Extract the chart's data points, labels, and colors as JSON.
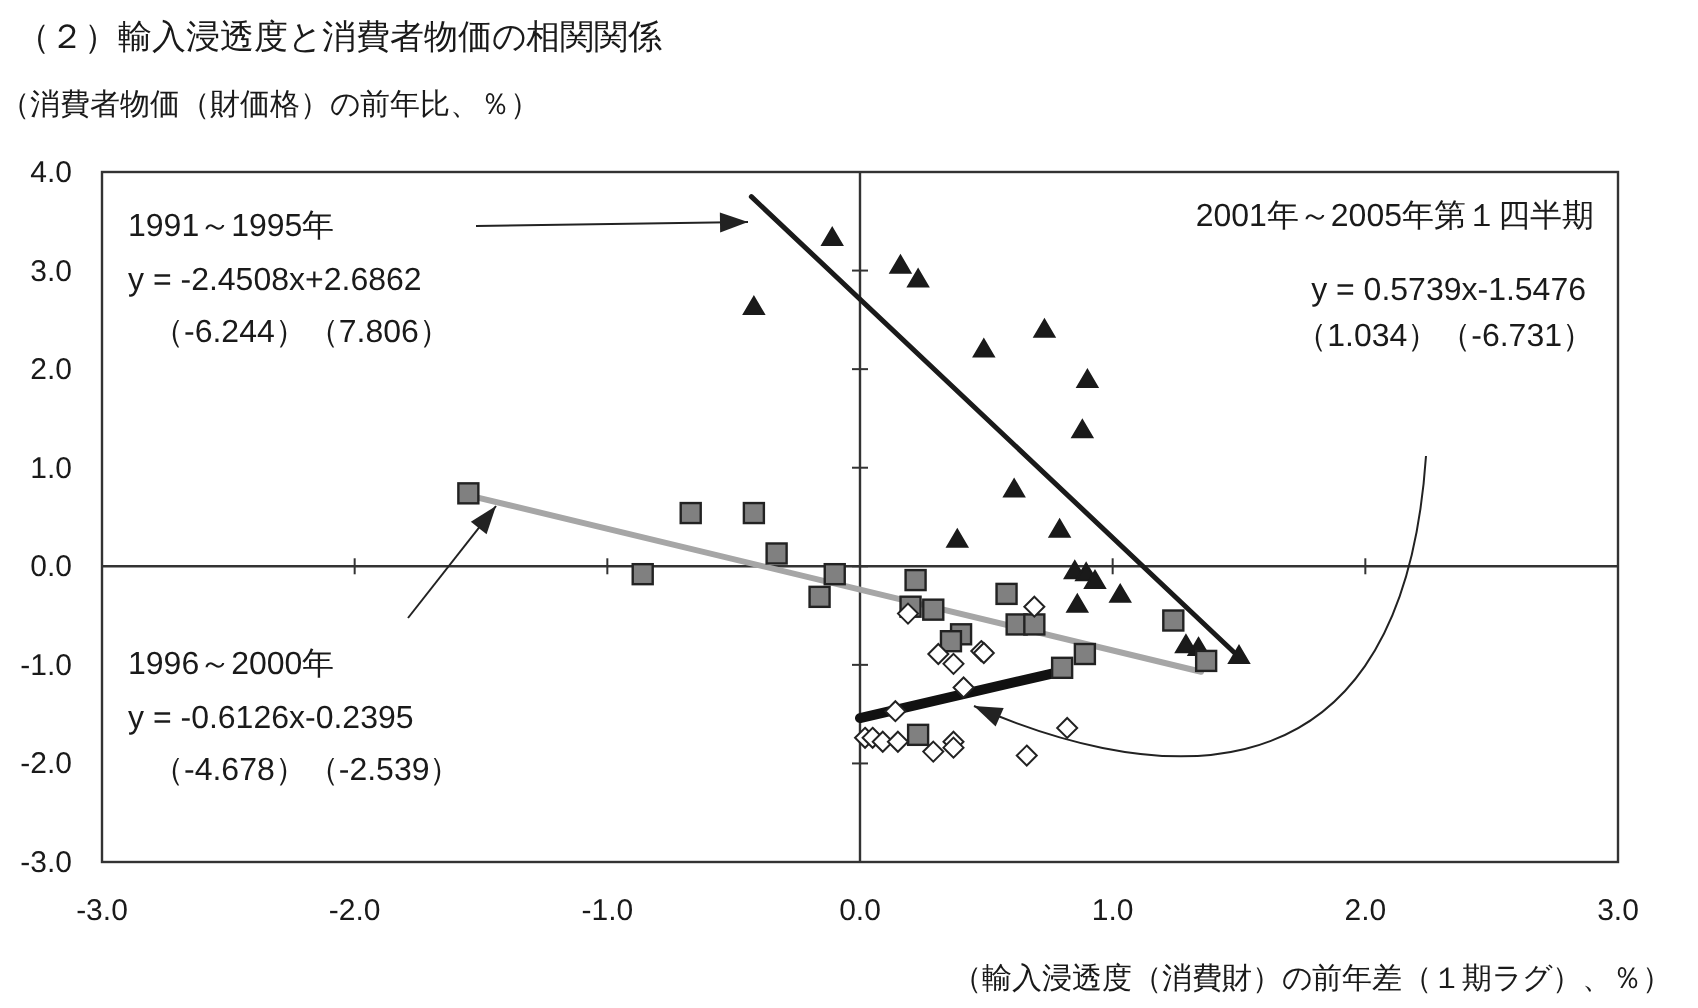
{
  "chart_data": {
    "type": "scatter",
    "title": "（２）輸入浸透度と消費者物価の相関関係",
    "ylabel": "（消費者物価（財価格）の前年比、％）",
    "xlabel": "（輸入浸透度（消費財）の前年差（１期ラグ）、％）",
    "xlim": [
      -3,
      3
    ],
    "ylim": [
      -3,
      4
    ],
    "xticks": [
      {
        "value": -3,
        "label": "-3.0"
      },
      {
        "value": -2,
        "label": "-2.0"
      },
      {
        "value": -1,
        "label": "-1.0"
      },
      {
        "value": 0,
        "label": "0.0"
      },
      {
        "value": 1,
        "label": "1.0"
      },
      {
        "value": 2,
        "label": "2.0"
      },
      {
        "value": 3,
        "label": "3.0"
      }
    ],
    "yticks": [
      {
        "value": -3,
        "label": "-3.0"
      },
      {
        "value": -2,
        "label": "-2.0"
      },
      {
        "value": -1,
        "label": "-1.0"
      },
      {
        "value": 0,
        "label": "0.0"
      },
      {
        "value": 1,
        "label": "1.0"
      },
      {
        "value": 2,
        "label": "2.0"
      },
      {
        "value": 3,
        "label": "3.0"
      },
      {
        "value": 4,
        "label": "4.0"
      }
    ],
    "series": [
      {
        "marker": "triangle",
        "color": "#1a1a1a",
        "x": [
          -0.42,
          -0.11,
          0.16,
          0.23,
          0.49,
          0.73,
          0.9,
          0.88,
          0.61,
          0.385,
          0.79,
          0.85,
          0.895,
          0.93,
          1.03,
          0.86,
          1.29,
          1.34,
          1.5
        ],
        "values": [
          2.63,
          3.33,
          3.05,
          2.91,
          2.2,
          2.4,
          1.89,
          1.38,
          0.78,
          0.27,
          0.37,
          -0.05,
          -0.07,
          -0.15,
          -0.29,
          -0.39,
          -0.8,
          -0.83,
          -0.91
        ]
      },
      {
        "marker": "square",
        "color": "#808080",
        "x": [
          -1.55,
          -0.86,
          -0.67,
          -0.42,
          -0.33,
          -0.16,
          -0.1,
          0.22,
          0.2,
          0.29,
          0.58,
          0.62,
          0.69,
          0.4,
          0.36,
          0.89,
          0.8,
          1.24,
          1.37,
          0.23
        ],
        "values": [
          0.74,
          -0.08,
          0.54,
          0.54,
          0.13,
          -0.31,
          -0.08,
          -0.14,
          -0.41,
          -0.44,
          -0.28,
          -0.59,
          -0.59,
          -0.69,
          -0.76,
          -0.89,
          -1.03,
          -0.55,
          -0.96,
          -1.71
        ]
      },
      {
        "marker": "diamond",
        "color": "#ffffff",
        "x": [
          0.19,
          0.69,
          0.31,
          0.37,
          0.48,
          0.49,
          0.41,
          0.14,
          0.02,
          0.05,
          0.09,
          0.15,
          0.29,
          0.37,
          0.37,
          0.66,
          0.82
        ],
        "values": [
          -0.48,
          -0.41,
          -0.89,
          -0.99,
          -0.86,
          -0.88,
          -1.23,
          -1.47,
          -1.74,
          -1.74,
          -1.78,
          -1.78,
          -1.88,
          -1.78,
          -1.84,
          -1.92,
          -1.64
        ]
      },
      {
        "type": "line",
        "color": "#1a1a1a",
        "x": [
          -0.43,
          1.5
        ],
        "values": [
          3.75,
          -0.92
        ]
      },
      {
        "type": "line",
        "color": "#a6a6a6",
        "x": [
          -1.55,
          1.35
        ],
        "values": [
          0.72,
          -1.07
        ]
      },
      {
        "type": "line",
        "color": "#111111",
        "x": [
          0.0,
          0.79
        ],
        "values": [
          -1.54,
          -1.07
        ]
      }
    ],
    "annotations": [
      "1991～1995年",
      "y = -2.4508x+2.6862",
      "（-6.244）（7.806）",
      "1996～2000年",
      "y = -0.6126x-0.2395",
      "（-4.678）（-2.539）",
      "2001年～2005年第１四半期",
      "y = 0.5739x-1.5476",
      "（1.034）（-6.731）"
    ]
  }
}
